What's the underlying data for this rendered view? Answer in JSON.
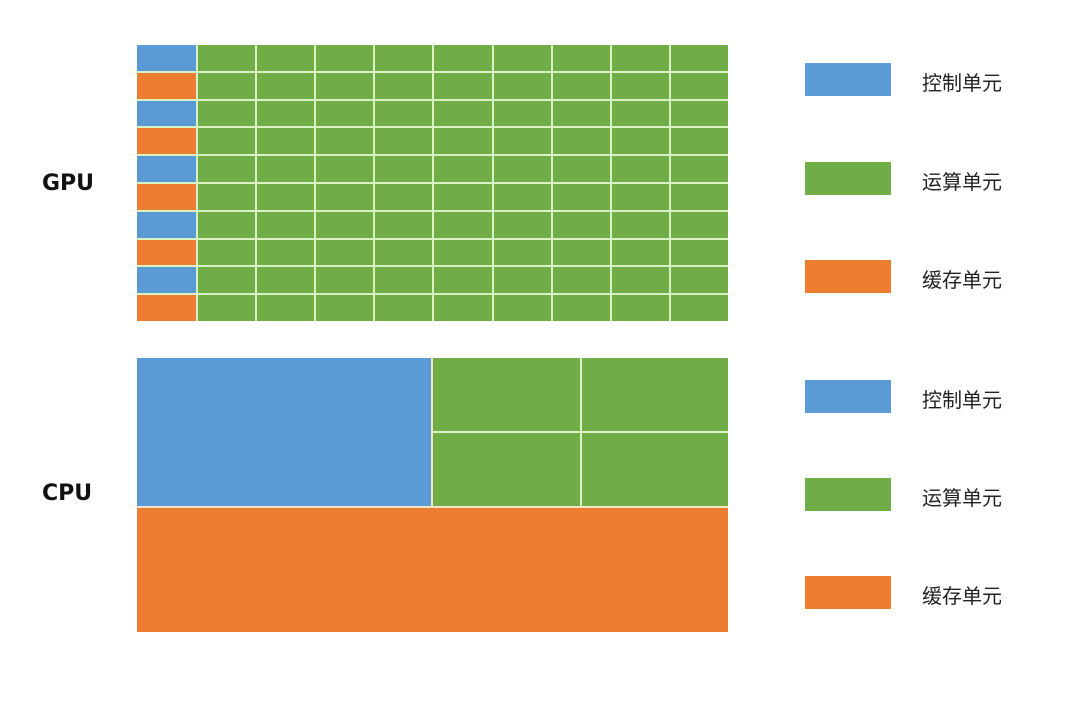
{
  "colors": {
    "control": "#5b9bd5",
    "alu": "#70ad47",
    "cache": "#ed7d31"
  },
  "gpu": {
    "label": "GPU",
    "rows": 10,
    "alu_columns": 9,
    "left_column_pattern": [
      "control",
      "cache",
      "control",
      "cache",
      "control",
      "cache",
      "control",
      "cache",
      "control",
      "cache"
    ],
    "legend": [
      {
        "type": "control",
        "text": "控制单元"
      },
      {
        "type": "alu",
        "text": "运算单元"
      },
      {
        "type": "cache",
        "text": "缓存单元"
      }
    ]
  },
  "cpu": {
    "label": "CPU",
    "alu_cells": 4,
    "legend": [
      {
        "type": "control",
        "text": "控制单元"
      },
      {
        "type": "alu",
        "text": "运算单元"
      },
      {
        "type": "cache",
        "text": "缓存单元"
      }
    ]
  }
}
